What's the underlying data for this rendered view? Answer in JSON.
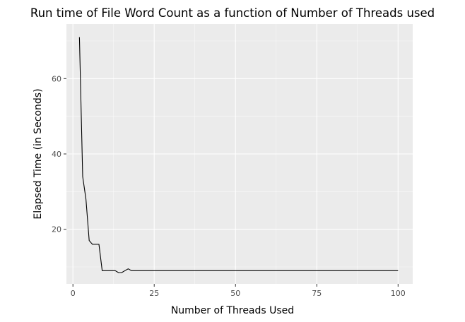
{
  "chart_data": {
    "type": "line",
    "title": "Run time of File Word Count as a function of Number of Threads used",
    "xlabel": "Number of Threads Used",
    "ylabel": "Elapsed Time (in Seconds)",
    "xlim": [
      -2,
      104.5
    ],
    "ylim": [
      5.5,
      74.5
    ],
    "x_ticks": [
      0,
      25,
      50,
      75,
      100
    ],
    "x_tick_labels": [
      "0",
      "25",
      "50",
      "75",
      "100"
    ],
    "x_minor_ticks": [
      12.5,
      37.5,
      62.5,
      87.5
    ],
    "y_ticks": [
      20,
      40,
      60
    ],
    "y_tick_labels": [
      "20",
      "40",
      "60"
    ],
    "y_minor_ticks": [
      10,
      30,
      50,
      70
    ],
    "grid": true,
    "background": "#ebebeb",
    "line_color": "#000000",
    "series": [
      {
        "x": [
          2,
          3,
          4,
          5,
          6,
          7,
          8,
          9,
          10,
          11,
          12,
          13,
          14,
          15,
          16,
          17,
          18,
          19,
          20,
          25,
          30,
          40,
          50,
          60,
          70,
          80,
          90,
          100
        ],
        "values": [
          71,
          34,
          28,
          17,
          16,
          16,
          16,
          9,
          9,
          9,
          9,
          9,
          8.5,
          8.5,
          9,
          9.5,
          9,
          9,
          9,
          9,
          9,
          9,
          9,
          9,
          9,
          9,
          9,
          9
        ]
      }
    ]
  }
}
